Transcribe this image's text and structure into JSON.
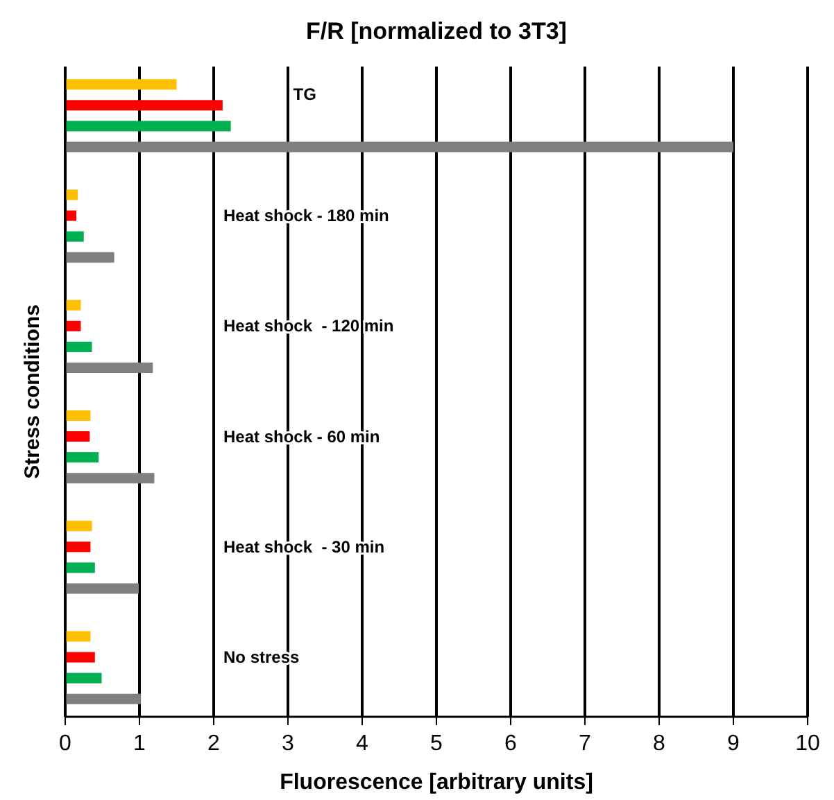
{
  "chart_data": {
    "type": "bar",
    "orientation": "horizontal",
    "title": "F/R [normalized to 3T3]",
    "xlabel": "Fluorescence [arbitrary units]",
    "ylabel": "Stress conditions",
    "categories": [
      "TG",
      "Heat shock - 180 min",
      "Heat shock  - 120 min",
      "Heat shock - 60 min",
      "Heat shock  - 30 min",
      "No stress"
    ],
    "series": [
      {
        "color": "#ffc000",
        "values": [
          1.5,
          0.17,
          0.21,
          0.34,
          0.36,
          0.34
        ]
      },
      {
        "color": "#ff0000",
        "values": [
          2.12,
          0.15,
          0.21,
          0.33,
          0.34,
          0.4
        ]
      },
      {
        "color": "#00b050",
        "values": [
          2.23,
          0.25,
          0.36,
          0.45,
          0.4,
          0.49
        ]
      },
      {
        "color": "#808080",
        "values": [
          9.0,
          0.66,
          1.18,
          1.2,
          0.99,
          1.02
        ]
      }
    ],
    "xlim": [
      0,
      10
    ],
    "xticks": [
      0,
      1,
      2,
      3,
      4,
      5,
      6,
      7,
      8,
      9,
      10
    ],
    "grid": "x"
  }
}
